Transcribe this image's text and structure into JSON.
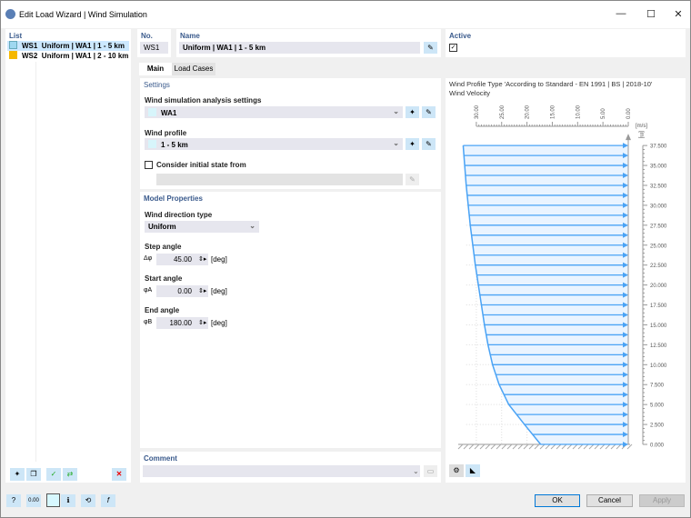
{
  "window": {
    "title": "Edit Load Wizard | Wind Simulation",
    "icon": "load-wizard-icon"
  },
  "list": {
    "header": "List",
    "items": [
      {
        "id": "WS1",
        "label": "Uniform | WA1 | 1 - 5 km",
        "color": "#9fd8f0",
        "selected": true
      },
      {
        "id": "WS2",
        "label": "Uniform | WA1 | 2 - 10 km",
        "color": "#f5b800",
        "selected": false
      }
    ]
  },
  "no": {
    "label": "No.",
    "value": "WS1"
  },
  "name": {
    "label": "Name",
    "value": "Uniform | WA1 | 1 - 5 km"
  },
  "active": {
    "label": "Active",
    "checked": true
  },
  "tabs": [
    {
      "label": "Main",
      "active": true
    },
    {
      "label": "Load Cases",
      "active": false
    }
  ],
  "settings": {
    "header": "Settings",
    "analysis_label": "Wind simulation analysis settings",
    "analysis_value": "WA1",
    "profile_label": "Wind profile",
    "profile_value": "1 - 5 km",
    "initial_state_label": "Consider initial state from",
    "initial_state_checked": false
  },
  "model": {
    "header": "Model Properties",
    "direction_label": "Wind direction type",
    "direction_value": "Uniform",
    "step": {
      "label": "Step angle",
      "symbol": "Δφ",
      "value": "45.00",
      "unit": "[deg]"
    },
    "start": {
      "label": "Start angle",
      "symbol": "φA",
      "value": "0.00",
      "unit": "[deg]"
    },
    "end": {
      "label": "End angle",
      "symbol": "φB",
      "value": "180.00",
      "unit": "[deg]"
    }
  },
  "comment": {
    "label": "Comment",
    "value": ""
  },
  "chart_panel": {
    "title": "Wind Profile Type 'According to Standard - EN 1991 | BS | 2018-10'",
    "subtitle": "Wind Velocity"
  },
  "chart_data": {
    "type": "line",
    "xlabel": "[m/s]",
    "ylabel": "[m]",
    "x_ticks": [
      "30.00",
      "25.00",
      "20.00",
      "15.00",
      "10.00",
      "5.00",
      "0.00"
    ],
    "y_ticks": [
      "37.500",
      "35.000",
      "32.500",
      "30.000",
      "27.500",
      "25.000",
      "22.500",
      "20.000",
      "17.500",
      "15.000",
      "12.500",
      "10.000",
      "7.500",
      "5.000",
      "2.500",
      "0.000"
    ],
    "xlim": [
      30,
      0
    ],
    "ylim": [
      0,
      37.5
    ],
    "x_reversed": true,
    "profile": {
      "z": [
        0,
        2.5,
        5,
        7.5,
        10,
        12.5,
        15,
        17.5,
        20,
        22.5,
        25,
        27.5,
        30,
        32.5,
        35,
        37.5
      ],
      "v": [
        17.3,
        20.5,
        23.6,
        25.5,
        26.8,
        27.7,
        28.4,
        29.0,
        29.6,
        30.2,
        30.7,
        31.2,
        31.6,
        32.0,
        32.3,
        32.6
      ]
    },
    "arrow_step": 1.25,
    "color": "#4aa3f5"
  },
  "buttons": {
    "ok": "OK",
    "cancel": "Cancel",
    "apply": "Apply"
  }
}
